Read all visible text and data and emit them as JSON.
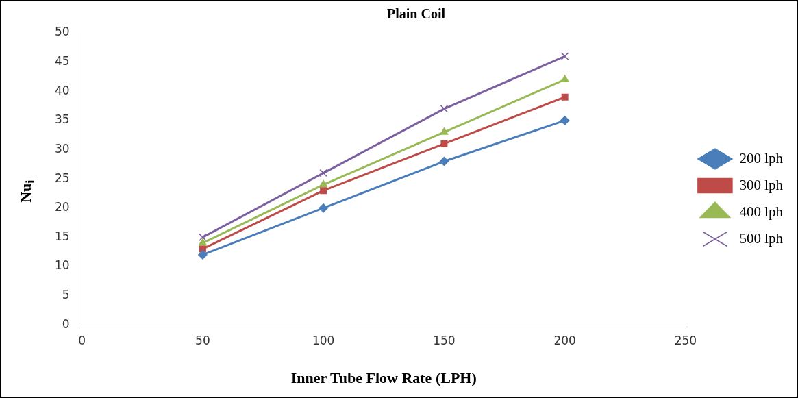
{
  "chart_data": {
    "type": "line",
    "title": "Plain Coil",
    "xlabel": "Inner Tube Flow Rate (LPH)",
    "ylabel": "Nu$_{i}$",
    "x": [
      50,
      100,
      150,
      200
    ],
    "series": [
      {
        "name": "200 lph",
        "color": "#4a7ebb",
        "values": [
          12,
          20,
          28,
          35
        ],
        "marker": "diamond"
      },
      {
        "name": "300 lph",
        "color": "#be4b48",
        "values": [
          13,
          23,
          31,
          39
        ],
        "marker": "square"
      },
      {
        "name": "400 lph",
        "color": "#98b954",
        "values": [
          14,
          24,
          33,
          42
        ],
        "marker": "triangle"
      },
      {
        "name": "500 lph",
        "color": "#7d60a0",
        "values": [
          15,
          26,
          37,
          46
        ],
        "marker": "cross"
      }
    ],
    "xlim": [
      0,
      250
    ],
    "xticks": [
      0,
      50,
      100,
      150,
      200,
      250
    ],
    "ylim": [
      0,
      50
    ],
    "yticks": [
      0,
      5,
      10,
      15,
      20,
      25,
      30,
      35,
      40,
      45,
      50
    ],
    "grid": false,
    "legend": "right",
    "line_style": "solid"
  }
}
